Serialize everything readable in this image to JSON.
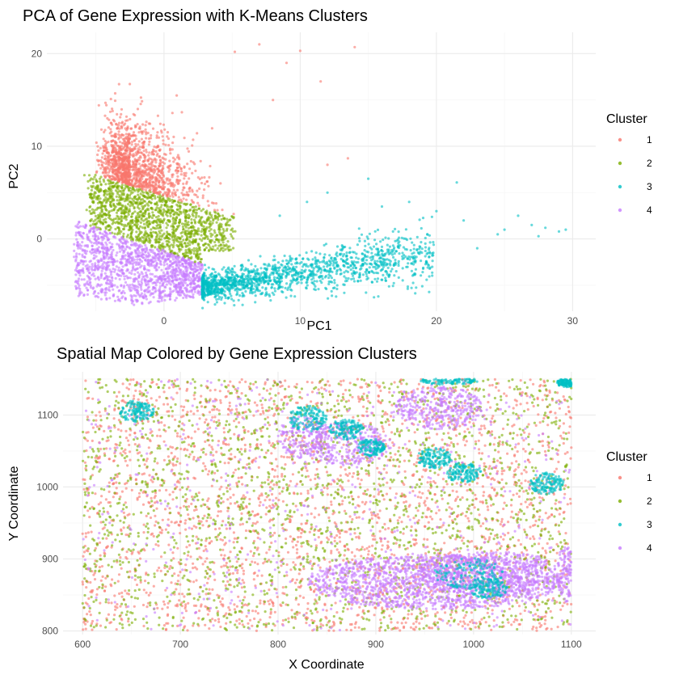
{
  "chart_data": [
    {
      "type": "scatter",
      "title": "PCA of Gene Expression with K-Means Clusters",
      "xlabel": "PC1",
      "ylabel": "PC2",
      "xlim": [
        -8.6,
        31.7
      ],
      "ylim": [
        -7.8,
        22.3
      ],
      "xticks": [
        0,
        10,
        20,
        30
      ],
      "yticks": [
        0,
        10,
        20
      ],
      "grid": true,
      "legend": {
        "title": "Cluster",
        "position": "right",
        "labels": [
          "1",
          "2",
          "3",
          "4"
        ]
      },
      "series": [
        {
          "name": "1",
          "color": "#F8766D",
          "description_points": [
            [
              0,
              8
            ],
            [
              2,
              10
            ],
            [
              -1,
              6
            ],
            [
              3,
              5
            ],
            [
              1,
              13
            ],
            [
              5,
              9
            ],
            [
              8,
              12
            ],
            [
              10,
              20.3
            ],
            [
              7,
              21
            ],
            [
              14,
              20.7
            ],
            [
              9,
              16
            ],
            [
              12,
              8
            ]
          ]
        },
        {
          "name": "2",
          "color": "#7CAE00",
          "description_points": [
            [
              -4,
              2
            ],
            [
              -2,
              4
            ],
            [
              0,
              3
            ],
            [
              2,
              1
            ],
            [
              -1,
              -0.5
            ],
            [
              4,
              0
            ],
            [
              -5,
              4
            ],
            [
              1,
              5
            ]
          ]
        },
        {
          "name": "3",
          "color": "#00BFC4",
          "description_points": [
            [
              5,
              -5
            ],
            [
              8,
              -4.5
            ],
            [
              10,
              -3
            ],
            [
              13,
              -3
            ],
            [
              16,
              -1.5
            ],
            [
              20,
              -1
            ],
            [
              24,
              0
            ],
            [
              26,
              2.5
            ],
            [
              29.5,
              1
            ],
            [
              15,
              6.5
            ],
            [
              21.5,
              6.1
            ]
          ]
        },
        {
          "name": "4",
          "color": "#C77CFF",
          "description_points": [
            [
              -4,
              -2
            ],
            [
              -2,
              -4
            ],
            [
              0,
              -5
            ],
            [
              2,
              -6
            ],
            [
              -6,
              -1
            ],
            [
              -3,
              -6.5
            ],
            [
              1,
              -2
            ]
          ]
        }
      ]
    },
    {
      "type": "scatter",
      "title": "Spatial Map Colored by Gene Expression Clusters",
      "xlabel": "X Coordinate",
      "ylabel": "Y Coordinate",
      "xlim": [
        580,
        1125
      ],
      "ylim": [
        795,
        1160
      ],
      "xticks": [
        600,
        700,
        800,
        900,
        1000,
        1100
      ],
      "yticks": [
        800,
        900,
        1000,
        1100
      ],
      "grid": true,
      "legend": {
        "title": "Cluster",
        "position": "right",
        "labels": [
          "1",
          "2",
          "3",
          "4"
        ]
      },
      "series": [
        {
          "name": "1",
          "color": "#F8766D",
          "description": "scattered across full extent x 600-1100, y 800-1150"
        },
        {
          "name": "2",
          "color": "#7CAE00",
          "description": "scattered across full extent, denser in middle band"
        },
        {
          "name": "3",
          "color": "#00BFC4",
          "blobs": [
            [
              655,
              1105
            ],
            [
              830,
              1095
            ],
            [
              870,
              1080
            ],
            [
              895,
              1055
            ],
            [
              960,
              1040
            ],
            [
              990,
              1020
            ],
            [
              1075,
              1005
            ],
            [
              995,
              880
            ],
            [
              1015,
              860
            ],
            [
              975,
              1148
            ],
            [
              1095,
              1145
            ]
          ]
        },
        {
          "name": "4",
          "color": "#C77CFF",
          "blobs": [
            [
              930,
              870
            ],
            [
              970,
              880
            ],
            [
              1020,
              870
            ],
            [
              960,
              1110
            ],
            [
              880,
              1060
            ],
            [
              840,
              1070
            ]
          ]
        }
      ]
    }
  ]
}
